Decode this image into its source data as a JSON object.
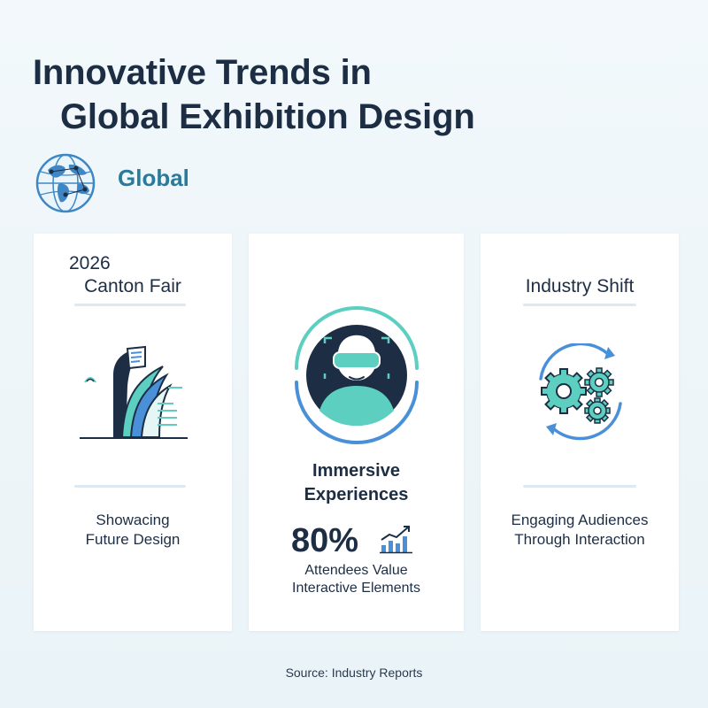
{
  "title": {
    "line1": "Innovative Trends in",
    "line2": "Global Exhibition Design"
  },
  "region": {
    "label": "Global",
    "icon": "globe-icon"
  },
  "cards": [
    {
      "year": "2026",
      "name": "Canton Fair",
      "icon": "building-icon",
      "desc_line1": "Showacing",
      "desc_line2": "Future Design"
    },
    {
      "icon": "vr-headset-person-icon",
      "heading_line1": "Immersive",
      "heading_line2": "Experiences",
      "stat": "80%",
      "stat_icon": "bar-chart-trend-icon",
      "sub_line1": "Attendees Value",
      "sub_line2": "Interactive Elements"
    },
    {
      "heading": "Industry Shift",
      "icon": "gears-cycle-icon",
      "desc_line1": "Engaging Audiences",
      "desc_line2": "Through Interaction"
    }
  ],
  "source": "Source: Industry Reports",
  "colors": {
    "navy": "#1d2e44",
    "teal": "#5ccfc0",
    "blue": "#4a90d9",
    "label_blue": "#2a7a9c"
  }
}
